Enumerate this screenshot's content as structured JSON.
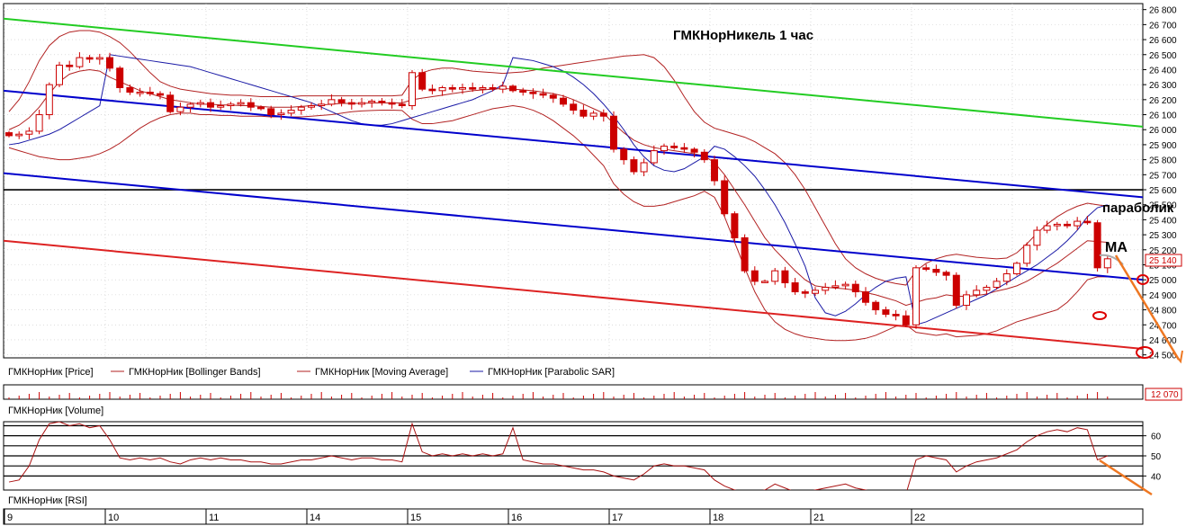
{
  "chart_data": [
    {
      "type": "candlestick",
      "panel": "price",
      "title": "ГМКНорНикель    1 час",
      "y_ticks": [
        24500,
        24600,
        24700,
        24800,
        24900,
        25000,
        25100,
        25200,
        25300,
        25400,
        25500,
        25600,
        25700,
        25800,
        25900,
        26000,
        26100,
        26200,
        26300,
        26400,
        26500,
        26600,
        26700,
        26800
      ],
      "y_tick_labels": [
        "24 500",
        "24 600",
        "24 700",
        "24 800",
        "24 900",
        "25 000",
        "25 100",
        "25 200",
        "25 300",
        "25 400",
        "25 500",
        "25 600",
        "25 700",
        "25 800",
        "25 900",
        "26 000",
        "26 100",
        "26 200",
        "26 300",
        "26 400",
        "26 500",
        "26 600",
        "26 700",
        "26 800"
      ],
      "ylim": [
        24480,
        26840
      ],
      "x_day_labels": [
        "9",
        "10",
        "11",
        "14",
        "15",
        "16",
        "17",
        "18",
        "21",
        "22"
      ],
      "bars_per_day": 10,
      "current_price_label": "25 140",
      "current_price": 25140,
      "horizontal_level": 25600,
      "legend": [
        {
          "name": "ГМКНорНик [Price]",
          "color": "#cc0000"
        },
        {
          "name": "ГМКНорНик [Bollinger Bands]",
          "color": "#b22222"
        },
        {
          "name": "ГМКНорНик [Moving Average]",
          "color": "#b22222"
        },
        {
          "name": "ГМКНорНик [Parabolic SAR]",
          "color": "#1a1aa6"
        }
      ],
      "annotations": [
        "параболик",
        "МА"
      ],
      "trendlines": [
        {
          "name": "",
          "color": "#22cc22",
          "x": [
            0,
            100
          ],
          "y": [
            26740,
            26020
          ]
        },
        {
          "name": "",
          "color": "#0000cc",
          "x": [
            0,
            100
          ],
          "y": [
            26260,
            25550
          ]
        },
        {
          "name": "",
          "color": "#0000cc",
          "x": [
            0,
            100
          ],
          "y": [
            25710,
            25000
          ]
        },
        {
          "name": "",
          "color": "#dd2222",
          "x": [
            0,
            100
          ],
          "y": [
            25260,
            24540
          ]
        }
      ],
      "closes": [
        25960,
        25970,
        25990,
        26100,
        26300,
        26430,
        26420,
        26480,
        26470,
        26480,
        26410,
        26280,
        26250,
        26250,
        26240,
        26230,
        26120,
        26150,
        26170,
        26180,
        26150,
        26160,
        26170,
        26180,
        26150,
        26140,
        26100,
        26110,
        26130,
        26150,
        26160,
        26170,
        26200,
        26180,
        26170,
        26180,
        26190,
        26180,
        26170,
        26160,
        26380,
        26270,
        26260,
        26280,
        26270,
        26280,
        26270,
        26280,
        26270,
        26290,
        26260,
        26250,
        26240,
        26230,
        26210,
        26170,
        26130,
        26090,
        26110,
        26090,
        25870,
        25800,
        25720,
        25780,
        25860,
        25890,
        25880,
        25870,
        25850,
        25800,
        25660,
        25440,
        25280,
        25060,
        24990,
        24990,
        25060,
        24980,
        24920,
        24910,
        24930,
        24950,
        24960,
        24970,
        24920,
        24850,
        24800,
        24770,
        24760,
        24700,
        25080,
        25070,
        25050,
        25030,
        24830,
        24900,
        24930,
        24950,
        24990,
        25040,
        25110,
        25230,
        25330,
        25360,
        25370,
        25360,
        25390,
        25380,
        25080,
        25140
      ],
      "sma": [
        26000,
        26030,
        26080,
        26150,
        26240,
        26320,
        26370,
        26390,
        26400,
        26390,
        26350,
        26320,
        26290,
        26260,
        26240,
        26220,
        26200,
        26190,
        26180,
        26170,
        26170,
        26165,
        26165,
        26160,
        26160,
        26155,
        26150,
        26150,
        26150,
        26155,
        26160,
        26165,
        26170,
        26175,
        26175,
        26175,
        26178,
        26178,
        26178,
        26178,
        26200,
        26210,
        26220,
        26230,
        26240,
        26250,
        26260,
        26265,
        26270,
        26275,
        26270,
        26265,
        26260,
        26250,
        26240,
        26225,
        26200,
        26170,
        26140,
        26110,
        26040,
        25980,
        25930,
        25900,
        25880,
        25870,
        25860,
        25850,
        25840,
        25825,
        25780,
        25700,
        25600,
        25500,
        25390,
        25280,
        25200,
        25130,
        25060,
        25000,
        24960,
        24950,
        24945,
        24940,
        24930,
        24915,
        24900,
        24880,
        24860,
        24830,
        24850,
        24870,
        24880,
        24900,
        24890,
        24890,
        24895,
        24905,
        24925,
        24940,
        24960,
        24990,
        25030,
        25070,
        25110,
        25160,
        25210,
        25260,
        25255,
        25250
      ],
      "upper_band": [
        26120,
        26200,
        26320,
        26460,
        26560,
        26620,
        26650,
        26660,
        26660,
        26650,
        26620,
        26580,
        26520,
        26450,
        26380,
        26320,
        26290,
        26270,
        26260,
        26250,
        26240,
        26235,
        26230,
        26230,
        26225,
        26220,
        26220,
        26220,
        26220,
        26225,
        26225,
        26225,
        26225,
        26225,
        26225,
        26225,
        26225,
        26225,
        26225,
        26230,
        26330,
        26380,
        26400,
        26410,
        26410,
        26400,
        26390,
        26385,
        26380,
        26375,
        26380,
        26385,
        26395,
        26410,
        26420,
        26430,
        26440,
        26450,
        26460,
        26470,
        26480,
        26490,
        26495,
        26500,
        26480,
        26420,
        26330,
        26220,
        26120,
        26050,
        26010,
        25990,
        25970,
        25950,
        25920,
        25880,
        25840,
        25780,
        25700,
        25600,
        25480,
        25360,
        25240,
        25140,
        25080,
        25040,
        25010,
        24990,
        24975,
        24965,
        25060,
        25110,
        25140,
        25160,
        25170,
        25160,
        25150,
        25145,
        25140,
        25145,
        25180,
        25240,
        25310,
        25370,
        25420,
        25460,
        25490,
        25510,
        25500,
        25490
      ],
      "lower_band": [
        25880,
        25860,
        25840,
        25820,
        25810,
        25800,
        25800,
        25810,
        25820,
        25840,
        25870,
        25910,
        25960,
        26010,
        26050,
        26080,
        26100,
        26110,
        26110,
        26100,
        26100,
        26095,
        26095,
        26090,
        26090,
        26090,
        26085,
        26085,
        26085,
        26085,
        26090,
        26095,
        26100,
        26110,
        26120,
        26125,
        26128,
        26130,
        26130,
        26128,
        26070,
        26040,
        26040,
        26050,
        26060,
        26080,
        26100,
        26120,
        26140,
        26150,
        26160,
        26150,
        26130,
        26100,
        26060,
        26010,
        25960,
        25900,
        25830,
        25760,
        25640,
        25570,
        25520,
        25490,
        25490,
        25500,
        25520,
        25540,
        25560,
        25590,
        25550,
        25420,
        25250,
        25080,
        24920,
        24800,
        24720,
        24670,
        24640,
        24620,
        24610,
        24600,
        24595,
        24595,
        24600,
        24610,
        24630,
        24660,
        24690,
        24700,
        24650,
        24640,
        24630,
        24640,
        24620,
        24625,
        24630,
        24640,
        24660,
        24690,
        24720,
        24740,
        24760,
        24780,
        24800,
        24850,
        24920,
        25000,
        25020,
        25020
      ],
      "parabolic_sar": [
        25900,
        25910,
        25930,
        25950,
        25970,
        26000,
        26040,
        26080,
        26120,
        26160,
        26500,
        26490,
        26480,
        26470,
        26460,
        26450,
        26440,
        26430,
        26420,
        26400,
        26380,
        26360,
        26340,
        26320,
        26300,
        26280,
        26260,
        26240,
        26220,
        26200,
        26180,
        26150,
        26120,
        26090,
        26060,
        26040,
        26030,
        26030,
        26040,
        26060,
        26080,
        26100,
        26120,
        26140,
        26160,
        26180,
        26200,
        26230,
        26260,
        26300,
        26480,
        26470,
        26460,
        26440,
        26420,
        26390,
        26350,
        26300,
        26240,
        26170,
        26090,
        26000,
        25900,
        25820,
        25760,
        25730,
        25720,
        25740,
        25780,
        25820,
        25890,
        25870,
        25820,
        25760,
        25690,
        25600,
        25500,
        25380,
        25240,
        25090,
        24880,
        24780,
        24760,
        24790,
        24840,
        24900,
        24950,
        24990,
        25010,
        25020,
        24700,
        24720,
        24750,
        24780,
        24810,
        24840,
        24870,
        24900,
        24940,
        24980,
        25020,
        25060,
        25100,
        25150,
        25200,
        25260,
        25330,
        25420,
        25480,
        25500
      ]
    },
    {
      "type": "bar",
      "panel": "volume",
      "series": [
        {
          "name": "ГМКНорНик [Volume]"
        }
      ],
      "last_value_label": "12 070",
      "last_value": 12070
    },
    {
      "type": "line",
      "panel": "rsi",
      "series": [
        {
          "name": "ГМКНорНик [RSI]",
          "color": "#aa1111"
        }
      ],
      "y_ticks": [
        40,
        50,
        60
      ],
      "ylim": [
        33,
        67
      ],
      "levels": [
        40,
        45,
        50,
        55,
        60,
        65
      ],
      "values": [
        37,
        38,
        45,
        58,
        66,
        67,
        65,
        66,
        64,
        65,
        58,
        49,
        48,
        49,
        48,
        49,
        47,
        46,
        48,
        49,
        48,
        49,
        48,
        48,
        47,
        47,
        46,
        46,
        47,
        48,
        48,
        49,
        50,
        49,
        48,
        49,
        49,
        48,
        48,
        47,
        66,
        52,
        50,
        51,
        50,
        51,
        50,
        51,
        50,
        51,
        64,
        48,
        47,
        46,
        46,
        45,
        44,
        43,
        43,
        42,
        40,
        39,
        38,
        41,
        45,
        46,
        45,
        45,
        44,
        43,
        38,
        35,
        33,
        32,
        32,
        33,
        36,
        34,
        32,
        32,
        33,
        34,
        35,
        36,
        34,
        33,
        32,
        32,
        32,
        31,
        48,
        50,
        49,
        48,
        42,
        45,
        47,
        48,
        49,
        51,
        53,
        57,
        60,
        62,
        63,
        62,
        64,
        63,
        48,
        50
      ]
    }
  ]
}
